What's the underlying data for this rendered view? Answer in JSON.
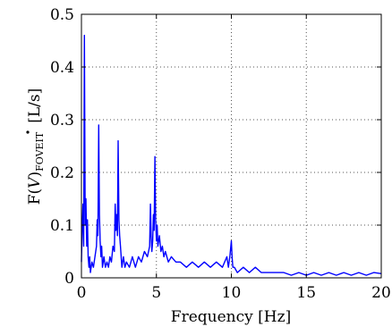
{
  "chart_data": {
    "type": "line",
    "title": "",
    "xlabel": "Frequency [Hz]",
    "ylabel": {
      "prefix": "F(",
      "symbol": "V",
      "suffix": ")",
      "subscript": "FOVEIT",
      "unit": "[L/s]"
    },
    "xlim": [
      0,
      20
    ],
    "ylim": [
      0,
      0.5
    ],
    "xticks": [
      "0",
      "5",
      "10",
      "15",
      "20"
    ],
    "xtick_values": [
      0,
      5,
      10,
      15,
      20
    ],
    "yticks": [
      "0",
      "0.1",
      "0.2",
      "0.3",
      "0.4",
      "0.5"
    ],
    "ytick_values": [
      0,
      0.1,
      0.2,
      0.3,
      0.4,
      0.5
    ],
    "grid": true,
    "series": [
      {
        "color": "#0000ff",
        "x": [
          0.0,
          0.05,
          0.1,
          0.15,
          0.2,
          0.25,
          0.3,
          0.35,
          0.4,
          0.45,
          0.5,
          0.55,
          0.6,
          0.7,
          0.8,
          0.9,
          1.0,
          1.05,
          1.1,
          1.15,
          1.2,
          1.25,
          1.3,
          1.35,
          1.4,
          1.5,
          1.6,
          1.7,
          1.8,
          1.9,
          2.0,
          2.1,
          2.2,
          2.25,
          2.3,
          2.35,
          2.4,
          2.45,
          2.5,
          2.55,
          2.6,
          2.65,
          2.7,
          2.8,
          2.9,
          3.0,
          3.2,
          3.4,
          3.6,
          3.8,
          4.0,
          4.2,
          4.4,
          4.55,
          4.6,
          4.65,
          4.7,
          4.75,
          4.8,
          4.85,
          4.9,
          4.95,
          5.0,
          5.05,
          5.1,
          5.2,
          5.3,
          5.4,
          5.5,
          5.6,
          5.8,
          6.0,
          6.3,
          6.6,
          7.0,
          7.4,
          7.8,
          8.2,
          8.6,
          9.0,
          9.4,
          9.7,
          9.8,
          9.9,
          10.0,
          10.05,
          10.1,
          10.2,
          10.4,
          10.8,
          11.2,
          11.6,
          12.0,
          12.5,
          13.0,
          13.5,
          14.0,
          14.5,
          15.0,
          15.5,
          16.0,
          16.5,
          17.0,
          17.5,
          18.0,
          18.5,
          19.0,
          19.5,
          20.0
        ],
        "values": [
          0.03,
          0.09,
          0.14,
          0.06,
          0.46,
          0.1,
          0.15,
          0.06,
          0.11,
          0.04,
          0.02,
          0.04,
          0.01,
          0.03,
          0.02,
          0.04,
          0.06,
          0.11,
          0.08,
          0.29,
          0.12,
          0.07,
          0.04,
          0.06,
          0.02,
          0.04,
          0.02,
          0.03,
          0.02,
          0.04,
          0.03,
          0.06,
          0.05,
          0.14,
          0.09,
          0.12,
          0.08,
          0.26,
          0.11,
          0.08,
          0.06,
          0.04,
          0.02,
          0.04,
          0.02,
          0.03,
          0.02,
          0.04,
          0.02,
          0.04,
          0.03,
          0.05,
          0.04,
          0.06,
          0.14,
          0.08,
          0.05,
          0.07,
          0.12,
          0.09,
          0.23,
          0.11,
          0.07,
          0.1,
          0.06,
          0.08,
          0.05,
          0.06,
          0.04,
          0.05,
          0.03,
          0.04,
          0.03,
          0.03,
          0.02,
          0.03,
          0.02,
          0.03,
          0.02,
          0.03,
          0.02,
          0.04,
          0.02,
          0.04,
          0.07,
          0.04,
          0.02,
          0.02,
          0.01,
          0.02,
          0.01,
          0.02,
          0.01,
          0.01,
          0.01,
          0.01,
          0.005,
          0.01,
          0.005,
          0.01,
          0.005,
          0.01,
          0.005,
          0.01,
          0.005,
          0.01,
          0.005,
          0.01,
          0.008
        ]
      }
    ]
  }
}
